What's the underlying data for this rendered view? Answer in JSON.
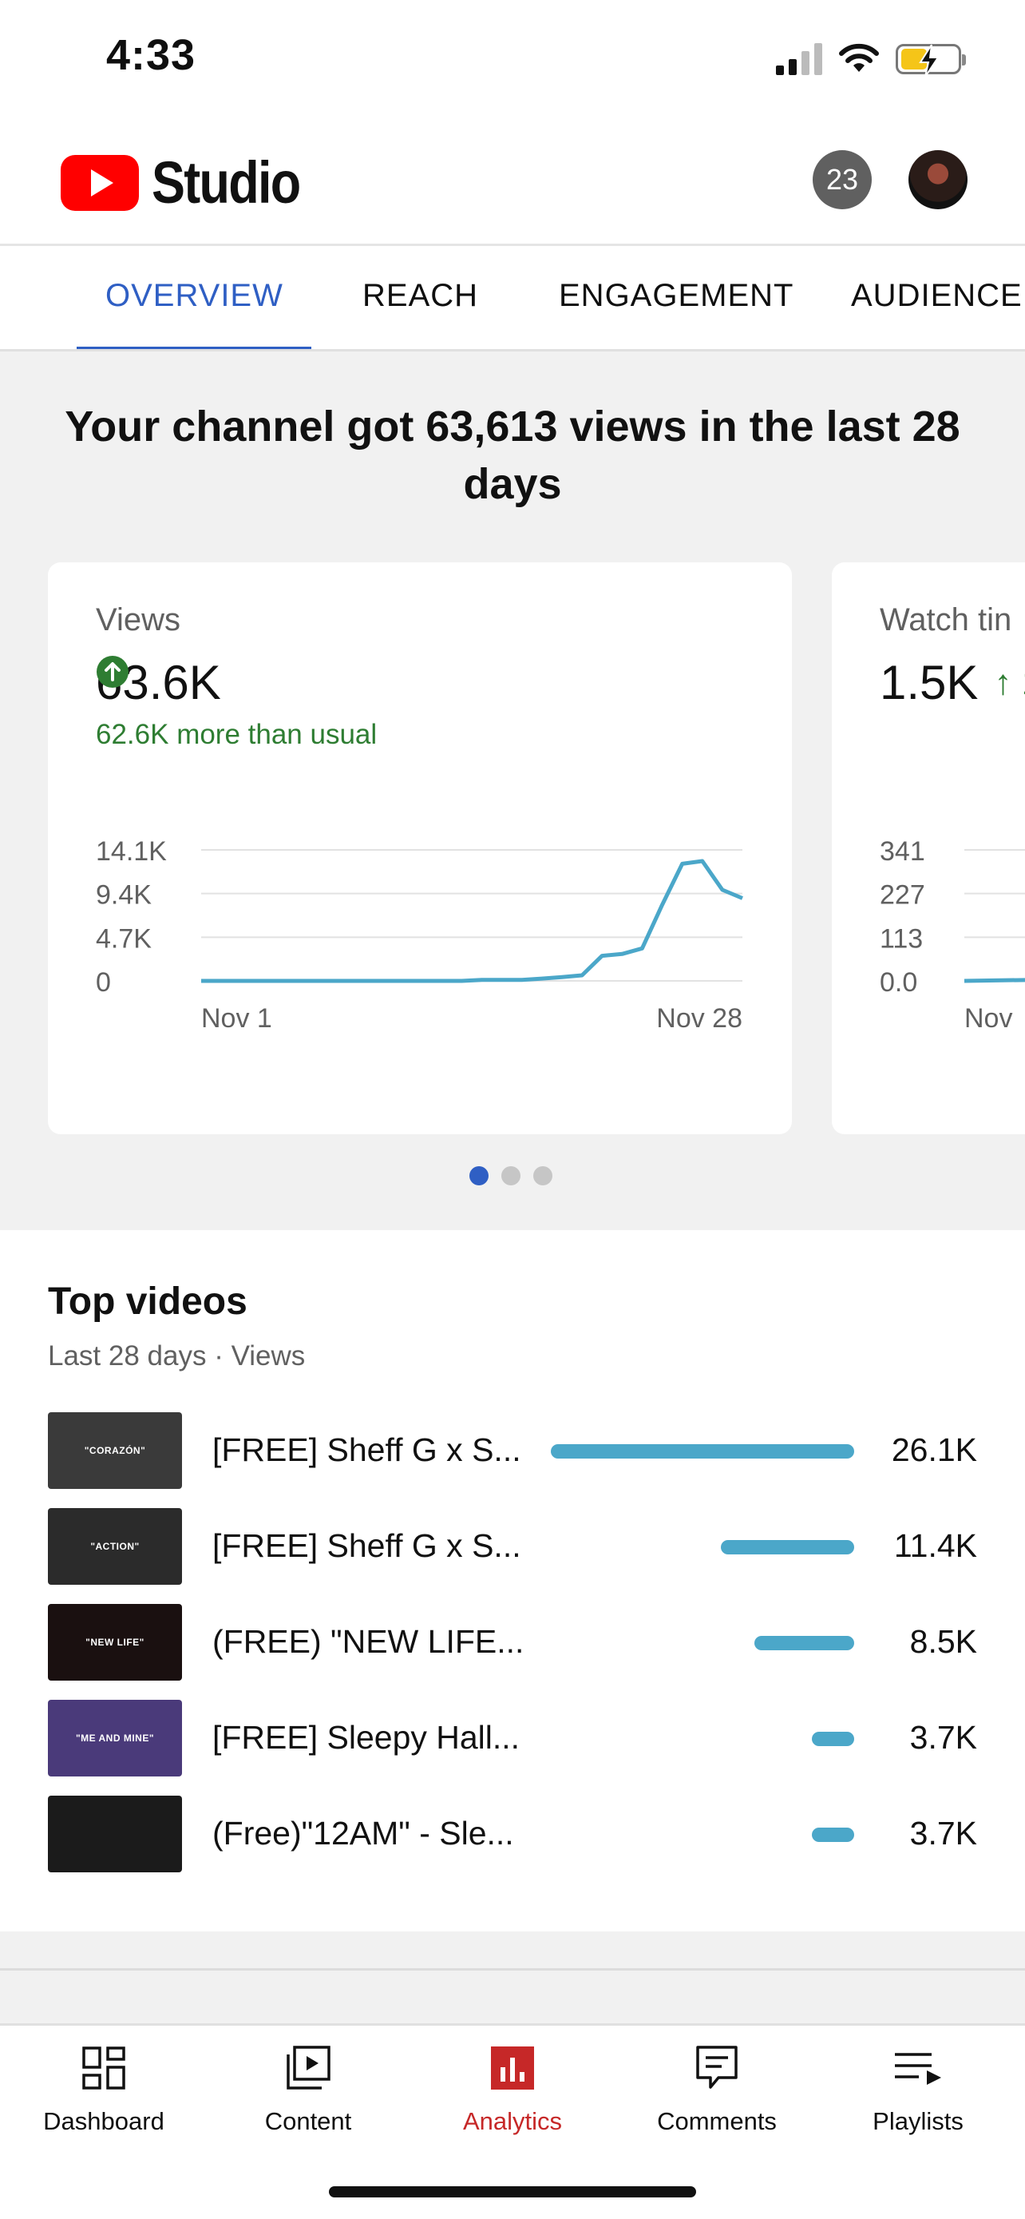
{
  "status_bar": {
    "time": "4:33"
  },
  "header": {
    "app_name": "Studio",
    "notification_count": "23"
  },
  "tabs": [
    "OVERVIEW",
    "REACH",
    "ENGAGEMENT",
    "AUDIENCE"
  ],
  "overview": {
    "headline": "Your channel got 63,613 views in the last 28 days",
    "cards": [
      {
        "label": "Views",
        "value": "63.6K",
        "delta": "62.6K more than usual",
        "y_ticks": [
          "14.1K",
          "9.4K",
          "4.7K",
          "0"
        ],
        "x_ticks": [
          "Nov 1",
          "Nov 28"
        ]
      },
      {
        "label": "Watch tin",
        "value": "1.5K",
        "trend_symbol": "↑ 1",
        "y_ticks": [
          "341",
          "227",
          "113",
          "0.0"
        ],
        "x_ticks": [
          "Nov"
        ]
      }
    ],
    "pager": {
      "count": 3,
      "active": 0
    }
  },
  "chart_data": {
    "type": "line",
    "title": "Views",
    "x": [
      1,
      2,
      3,
      4,
      5,
      6,
      7,
      8,
      9,
      10,
      11,
      12,
      13,
      14,
      15,
      16,
      17,
      18,
      19,
      20,
      21,
      22,
      23,
      24,
      25,
      26,
      27,
      28
    ],
    "series": [
      {
        "values": [
          0,
          0,
          0,
          0,
          0,
          0,
          0,
          0,
          0,
          0,
          0,
          0,
          0,
          0,
          100,
          100,
          100,
          250,
          400,
          600,
          2700,
          2900,
          3500,
          8200,
          12600,
          12900,
          9800,
          8900
        ]
      }
    ],
    "ylim": [
      0,
      14100
    ],
    "y_tick_labels": [
      "0",
      "4.7K",
      "9.4K",
      "14.1K"
    ],
    "x_tick_labels": [
      "Nov 1",
      "Nov 28"
    ],
    "grid": true,
    "color": "#4ba7c9"
  },
  "top_videos": {
    "title": "Top videos",
    "subtitle": "Last 28 days · Views",
    "items": [
      {
        "thumb_text": "\"CORAZÓN\"",
        "title": "[FREE] Sheff G x S...",
        "views": "26.1K",
        "share": 1.0,
        "thumb_color": "#3a3a3a"
      },
      {
        "thumb_text": "\"ACTION\"",
        "title": "[FREE] Sheff G x S...",
        "views": "11.4K",
        "share": 0.44,
        "thumb_color": "#2b2b2b"
      },
      {
        "thumb_text": "\"NEW LIFE\"",
        "title": "(FREE) \"NEW LIFE...",
        "views": "8.5K",
        "share": 0.33,
        "thumb_color": "#1a1010"
      },
      {
        "thumb_text": "\"ME AND MINE\"",
        "title": "[FREE] Sleepy Hall...",
        "views": "3.7K",
        "share": 0.14,
        "thumb_color": "#4a3a7a"
      },
      {
        "thumb_text": "",
        "title": "(Free)\"12AM\" - Sle...",
        "views": "3.7K",
        "share": 0.14,
        "thumb_color": "#1b1b1b"
      }
    ]
  },
  "bottom_nav": [
    {
      "label": "Dashboard",
      "icon": "dashboard-icon"
    },
    {
      "label": "Content",
      "icon": "content-icon"
    },
    {
      "label": "Analytics",
      "icon": "analytics-icon"
    },
    {
      "label": "Comments",
      "icon": "comments-icon"
    },
    {
      "label": "Playlists",
      "icon": "playlists-icon"
    }
  ],
  "colors": {
    "accent": "#2f5fc4",
    "positive": "#2e7d32",
    "analytics_red": "#c62828",
    "youtube_red": "#ff0000",
    "chart_line": "#4ba7c9"
  }
}
